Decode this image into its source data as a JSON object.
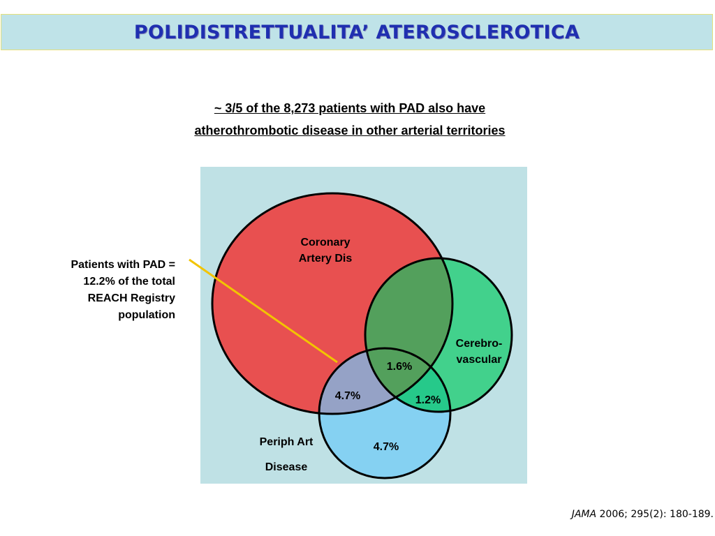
{
  "title": "POLIDISTRETTUALITA’ ATEROSCLEROTICA",
  "subtitle": {
    "line1": "~ 3/5 of the 8,273 patients with PAD also have",
    "line2": "atherothrombotic disease in other arterial territories"
  },
  "pad_note": {
    "line1": "Patients with PAD =",
    "line2": "12.2% of the total",
    "line3": "REACH Registry",
    "line4": "population"
  },
  "venn": {
    "coronary": {
      "label_line1": "Coronary",
      "label_line2": "Artery Dis"
    },
    "cerebrovascular": {
      "label_line1": "Cerebro-",
      "label_line2": "vascular"
    },
    "peripheral": {
      "label_line1": "Periph Art",
      "label_line2": "Disease"
    },
    "values": {
      "all_three": "1.6%",
      "pad_coronary": "4.7%",
      "pad_cerebro": "1.2%",
      "pad_only": "4.7%"
    },
    "colors": {
      "panel": "#bfe1e5",
      "coronary": "#e85050",
      "cerebro": "#42d18c",
      "pad": "#85d1f2",
      "coronary_cerebro": "#53a05c",
      "coronary_pad": "#95a2c6",
      "cerebro_pad": "#26c98a",
      "callout_line": "#f2c400"
    }
  },
  "citation": {
    "journal": "JAMA",
    "reference": " 2006; 295(2): 180-189."
  }
}
